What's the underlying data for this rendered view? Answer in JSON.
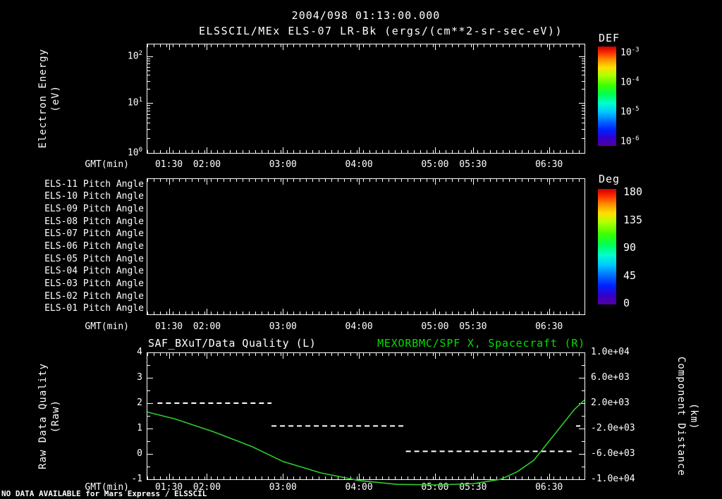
{
  "header": {
    "datetime": "2004/098 01:13:00.000",
    "subtitle": "ELSSCIL/MEx ELS-07 LR-Bk (ergs/(cm**2-sr-sec-eV))"
  },
  "time_axis": {
    "label": "GMT(min)",
    "start_min": 73,
    "end_min": 418,
    "ticks": [
      {
        "label": "01:30",
        "min": 90
      },
      {
        "label": "02:00",
        "min": 120
      },
      {
        "label": "03:00",
        "min": 180
      },
      {
        "label": "04:00",
        "min": 240
      },
      {
        "label": "05:00",
        "min": 300
      },
      {
        "label": "05:30",
        "min": 330
      },
      {
        "label": "06:30",
        "min": 390
      }
    ]
  },
  "chart_data": [
    {
      "type": "heatmap",
      "title": "ELSSCIL/MEx ELS-07 LR-Bk (ergs/(cm**2-sr-sec-eV))",
      "ylabel": "Electron Energy (eV)",
      "ylabel_lines": [
        "Electron Energy",
        "(eV)"
      ],
      "yscale": "log",
      "ytick_labels": [
        "10^2",
        "10^1",
        "10^0"
      ],
      "xlabel": "GMT(min)",
      "values": [],
      "colorbar": {
        "title": "DEF",
        "units": "ergs/(cm**2-sr-sec-eV)",
        "tick_labels": [
          "10^-3",
          "10^-4",
          "10^-5",
          "10^-6"
        ]
      }
    },
    {
      "type": "heatmap",
      "rows": [
        "ELS-11 Pitch Angle",
        "ELS-10 Pitch Angle",
        "ELS-09 Pitch Angle",
        "ELS-08 Pitch Angle",
        "ELS-07 Pitch Angle",
        "ELS-06 Pitch Angle",
        "ELS-05 Pitch Angle",
        "ELS-04 Pitch Angle",
        "ELS-03 Pitch Angle",
        "ELS-02 Pitch Angle",
        "ELS-01 Pitch Angle"
      ],
      "xlabel": "GMT(min)",
      "values": [],
      "colorbar": {
        "title": "Deg",
        "tick_labels": [
          "180",
          "135",
          "90",
          "45",
          "0"
        ],
        "range": [
          0,
          180
        ]
      }
    },
    {
      "type": "line",
      "titles": {
        "left": "SAF_BXuT/Data Quality (L)",
        "right": "MEXORBMC/SPF X, Spacecraft (R)"
      },
      "left_axis": {
        "label": "Raw Data Quality (Raw)",
        "label_lines": [
          "Raw Data Quality",
          "(Raw)"
        ],
        "range": [
          -1,
          4
        ],
        "ticks": [
          "4",
          "3",
          "2",
          "1",
          "0",
          "-1"
        ]
      },
      "right_axis": {
        "label": "Component Distance (km)",
        "label_lines": [
          "Component Distance",
          "(km)"
        ],
        "range": [
          -10000,
          10000
        ],
        "tick_labels": [
          "1.0e+04",
          "6.0e+03",
          "2.0e+03",
          "-2.0e+03",
          "-6.0e+03",
          "-1.0e+04"
        ]
      },
      "xlabel": "GMT(min)",
      "series": [
        {
          "name": "SAF_BXuT/Data Quality (L)",
          "axis": "left",
          "style": "dashed",
          "color": "#ffffff",
          "segments": [
            {
              "value": 2.0,
              "t_start": 81,
              "t_end": 171
            },
            {
              "value": 1.1,
              "t_start": 171,
              "t_end": 275
            },
            {
              "value": 0.1,
              "t_start": 277,
              "t_end": 410
            }
          ],
          "points": [
            {
              "value": 1.1,
              "t": 413
            }
          ]
        },
        {
          "name": "MEXORBMC/SPF X, Spacecraft (R)",
          "axis": "right",
          "style": "solid",
          "color": "#2ecc2e",
          "points_t_km": [
            [
              73,
              600
            ],
            [
              95,
              -500
            ],
            [
              125,
              -2500
            ],
            [
              155,
              -4800
            ],
            [
              180,
              -7200
            ],
            [
              210,
              -9000
            ],
            [
              240,
              -10200
            ],
            [
              270,
              -10800
            ],
            [
              300,
              -10900
            ],
            [
              330,
              -10700
            ],
            [
              352,
              -10000
            ],
            [
              365,
              -8800
            ],
            [
              378,
              -7000
            ],
            [
              390,
              -4000
            ],
            [
              400,
              -1500
            ],
            [
              410,
              1000
            ],
            [
              418,
              2500
            ]
          ]
        }
      ]
    }
  ],
  "status": {
    "no_data_message": "NO DATA AVAILABLE for Mars Express / ELSSCIL"
  }
}
